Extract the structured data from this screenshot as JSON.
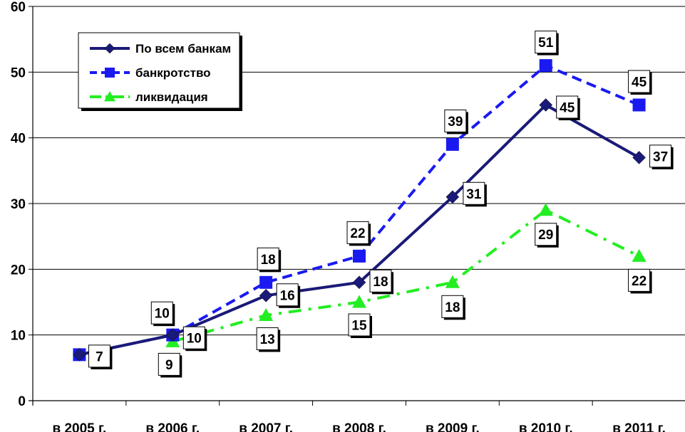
{
  "chart_data": {
    "type": "line",
    "title": "",
    "xlabel": "",
    "ylabel": "",
    "categories": [
      "в 2005 г.",
      "в 2006 г.",
      "в 2007 г.",
      "в 2008 г.",
      "в 2009 г.",
      "в 2010 г.",
      "в 2011 г."
    ],
    "ylim": [
      0,
      60
    ],
    "yticks": [
      "0",
      "10",
      "20",
      "30",
      "40",
      "50",
      "60"
    ],
    "grid": "horizontal",
    "legend_position": "top-left",
    "series": [
      {
        "name": "По всем банкам",
        "color": "#1a1a78",
        "marker": "diamond",
        "line": "solid",
        "values": [
          7,
          10,
          16,
          18,
          31,
          45,
          37
        ],
        "labels": [
          "7",
          "10",
          "16",
          "18",
          "31",
          "45",
          "37"
        ]
      },
      {
        "name": "банкротство",
        "color": "#1a1af0",
        "marker": "square",
        "line": "dashed",
        "values": [
          7,
          10,
          18,
          22,
          39,
          51,
          45
        ],
        "labels": [
          "",
          "10",
          "18",
          "22",
          "39",
          "51",
          "45"
        ]
      },
      {
        "name": "ликвидация",
        "color": "#22ee22",
        "marker": "triangle",
        "line": "dashdot",
        "values": [
          null,
          9,
          13,
          15,
          18,
          29,
          22
        ],
        "labels": [
          "",
          "9",
          "13",
          "15",
          "18",
          "29",
          "22"
        ]
      }
    ]
  }
}
